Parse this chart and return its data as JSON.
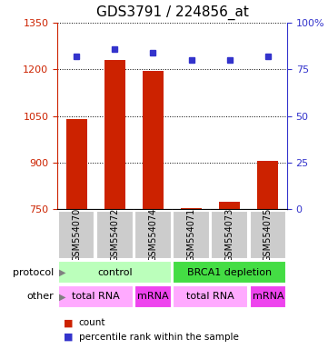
{
  "title": "GDS3791 / 224856_at",
  "samples": [
    "GSM554070",
    "GSM554072",
    "GSM554074",
    "GSM554071",
    "GSM554073",
    "GSM554075"
  ],
  "counts": [
    1040,
    1230,
    1195,
    755,
    775,
    905
  ],
  "percentiles": [
    82,
    86,
    84,
    80,
    80,
    82
  ],
  "ylim_left": [
    750,
    1350
  ],
  "ylim_right": [
    0,
    100
  ],
  "yticks_left": [
    750,
    900,
    1050,
    1200,
    1350
  ],
  "yticks_right": [
    0,
    25,
    50,
    75,
    100
  ],
  "bar_color": "#cc2200",
  "dot_color": "#3333cc",
  "protocol_labels": [
    {
      "text": "control",
      "start": 0,
      "end": 3,
      "color": "#bbffbb"
    },
    {
      "text": "BRCA1 depletion",
      "start": 3,
      "end": 6,
      "color": "#44dd44"
    }
  ],
  "other_labels": [
    {
      "text": "total RNA",
      "start": 0,
      "end": 2,
      "color": "#ffaaff"
    },
    {
      "text": "mRNA",
      "start": 2,
      "end": 3,
      "color": "#ee44ee"
    },
    {
      "text": "total RNA",
      "start": 3,
      "end": 5,
      "color": "#ffaaff"
    },
    {
      "text": "mRNA",
      "start": 5,
      "end": 6,
      "color": "#ee44ee"
    }
  ],
  "legend_count_color": "#cc2200",
  "legend_dot_color": "#3333cc",
  "sample_box_color": "#cccccc",
  "title_fontsize": 11,
  "axis_tick_fontsize": 8,
  "sample_label_fontsize": 7,
  "panel_label_fontsize": 8,
  "panel_text_fontsize": 8,
  "legend_fontsize": 7.5
}
